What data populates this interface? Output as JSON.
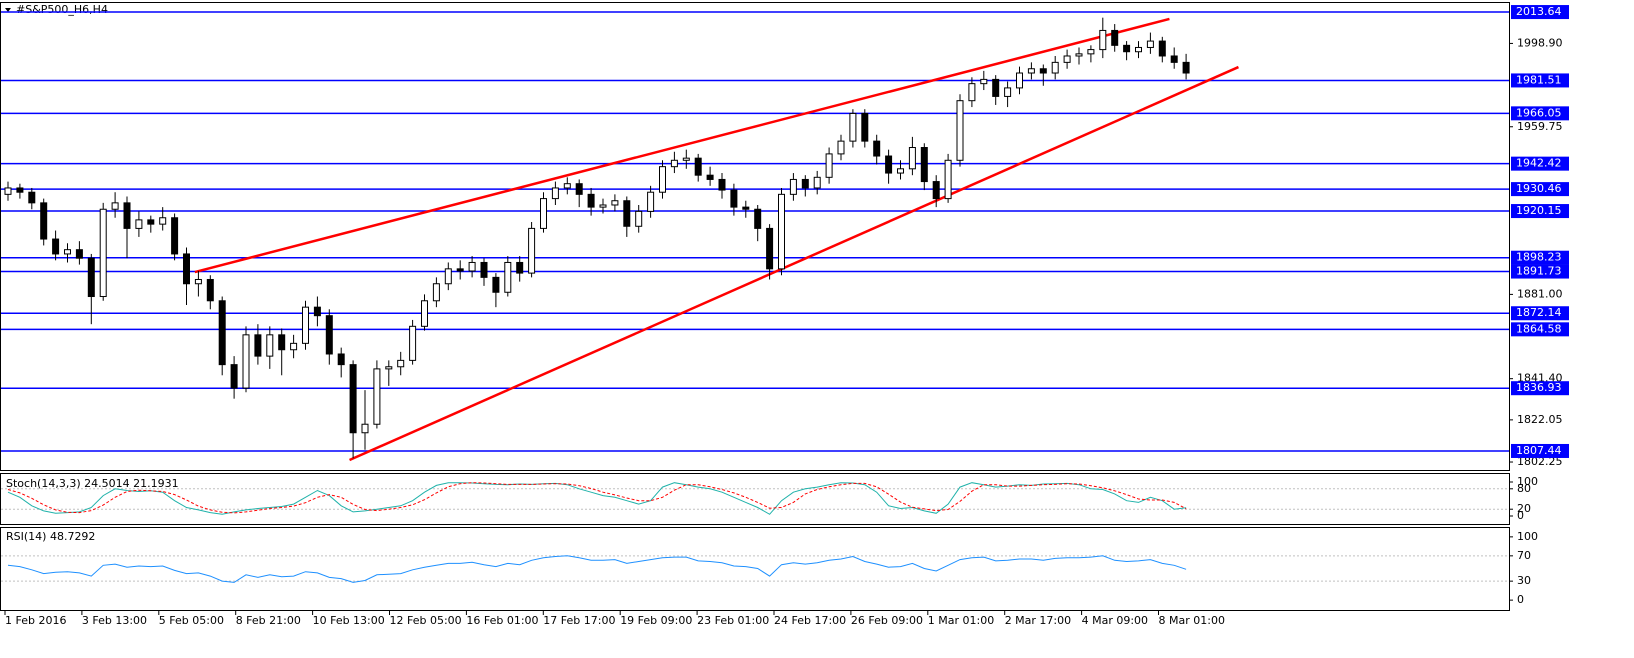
{
  "chart_data": [
    {
      "type": "candlestick",
      "title": "#S&P500_H6,H4",
      "ohlc": [
        [
          1928,
          1934,
          1925,
          1931
        ],
        [
          1931,
          1933,
          1926,
          1929
        ],
        [
          1929,
          1931,
          1921,
          1924
        ],
        [
          1924,
          1926,
          1904,
          1907
        ],
        [
          1907,
          1911,
          1897,
          1900
        ],
        [
          1900,
          1905,
          1896,
          1902
        ],
        [
          1902,
          1906,
          1895,
          1898
        ],
        [
          1898,
          1900,
          1867,
          1880
        ],
        [
          1880,
          1924,
          1878,
          1921
        ],
        [
          1921,
          1929,
          1917,
          1924
        ],
        [
          1924,
          1927,
          1898,
          1912
        ],
        [
          1912,
          1920,
          1908,
          1916
        ],
        [
          1916,
          1918,
          1910,
          1914
        ],
        [
          1914,
          1922,
          1911,
          1917
        ],
        [
          1917,
          1919,
          1897,
          1900
        ],
        [
          1900,
          1903,
          1876,
          1886
        ],
        [
          1886,
          1892,
          1880,
          1888
        ],
        [
          1888,
          1890,
          1874,
          1878
        ],
        [
          1878,
          1880,
          1843,
          1848
        ],
        [
          1848,
          1852,
          1832,
          1837
        ],
        [
          1837,
          1866,
          1835,
          1862
        ],
        [
          1862,
          1867,
          1848,
          1852
        ],
        [
          1852,
          1866,
          1846,
          1862
        ],
        [
          1862,
          1865,
          1843,
          1855
        ],
        [
          1855,
          1862,
          1851,
          1858
        ],
        [
          1858,
          1878,
          1855,
          1875
        ],
        [
          1875,
          1880,
          1866,
          1871
        ],
        [
          1871,
          1874,
          1848,
          1853
        ],
        [
          1853,
          1856,
          1842,
          1848
        ],
        [
          1848,
          1850,
          1804,
          1816
        ],
        [
          1816,
          1836,
          1808,
          1820
        ],
        [
          1820,
          1850,
          1818,
          1846
        ],
        [
          1846,
          1850,
          1838,
          1847
        ],
        [
          1847,
          1854,
          1843,
          1850
        ],
        [
          1850,
          1869,
          1848,
          1866
        ],
        [
          1866,
          1881,
          1864,
          1878
        ],
        [
          1878,
          1889,
          1875,
          1886
        ],
        [
          1886,
          1896,
          1883,
          1893
        ],
        [
          1893,
          1897,
          1888,
          1892
        ],
        [
          1892,
          1899,
          1889,
          1896
        ],
        [
          1896,
          1898,
          1885,
          1889
        ],
        [
          1889,
          1891,
          1875,
          1882
        ],
        [
          1882,
          1899,
          1880,
          1896
        ],
        [
          1896,
          1899,
          1887,
          1891
        ],
        [
          1891,
          1915,
          1889,
          1912
        ],
        [
          1912,
          1929,
          1910,
          1926
        ],
        [
          1926,
          1934,
          1923,
          1931
        ],
        [
          1931,
          1936,
          1928,
          1933
        ],
        [
          1933,
          1935,
          1922,
          1928
        ],
        [
          1928,
          1931,
          1918,
          1922
        ],
        [
          1922,
          1926,
          1919,
          1923
        ],
        [
          1923,
          1928,
          1920,
          1925
        ],
        [
          1925,
          1927,
          1908,
          1913
        ],
        [
          1913,
          1923,
          1910,
          1920
        ],
        [
          1920,
          1932,
          1917,
          1929
        ],
        [
          1929,
          1944,
          1926,
          1941
        ],
        [
          1941,
          1948,
          1938,
          1944
        ],
        [
          1944,
          1949,
          1940,
          1945
        ],
        [
          1945,
          1947,
          1934,
          1937
        ],
        [
          1937,
          1941,
          1932,
          1935
        ],
        [
          1935,
          1938,
          1926,
          1930
        ],
        [
          1930,
          1933,
          1918,
          1922
        ],
        [
          1922,
          1925,
          1917,
          1921
        ],
        [
          1921,
          1923,
          1906,
          1912
        ],
        [
          1912,
          1914,
          1888,
          1893
        ],
        [
          1893,
          1931,
          1890,
          1928
        ],
        [
          1928,
          1938,
          1925,
          1935
        ],
        [
          1935,
          1937,
          1927,
          1931
        ],
        [
          1931,
          1939,
          1928,
          1936
        ],
        [
          1936,
          1950,
          1933,
          1947
        ],
        [
          1947,
          1956,
          1944,
          1953
        ],
        [
          1953,
          1968,
          1950,
          1966
        ],
        [
          1966,
          1968,
          1950,
          1953
        ],
        [
          1953,
          1956,
          1942,
          1946
        ],
        [
          1946,
          1949,
          1933,
          1938
        ],
        [
          1938,
          1944,
          1935,
          1940
        ],
        [
          1940,
          1955,
          1937,
          1950
        ],
        [
          1950,
          1952,
          1930,
          1934
        ],
        [
          1934,
          1937,
          1922,
          1926
        ],
        [
          1926,
          1947,
          1924,
          1944
        ],
        [
          1944,
          1975,
          1941,
          1972
        ],
        [
          1972,
          1983,
          1969,
          1980
        ],
        [
          1980,
          1986,
          1977,
          1982
        ],
        [
          1982,
          1984,
          1970,
          1974
        ],
        [
          1974,
          1981,
          1969,
          1978
        ],
        [
          1978,
          1988,
          1975,
          1985
        ],
        [
          1985,
          1990,
          1982,
          1987
        ],
        [
          1987,
          1989,
          1979,
          1985
        ],
        [
          1985,
          1993,
          1982,
          1990
        ],
        [
          1990,
          1996,
          1987,
          1993
        ],
        [
          1993,
          1997,
          1989,
          1994
        ],
        [
          1994,
          1998,
          1990,
          1996
        ],
        [
          1996,
          2011,
          1992,
          2005
        ],
        [
          2005,
          2008,
          1995,
          1998
        ],
        [
          1998,
          2000,
          1991,
          1995
        ],
        [
          1995,
          2000,
          1992,
          1997
        ],
        [
          1997,
          2004,
          1994,
          2000
        ],
        [
          2000,
          2002,
          1990,
          1993
        ],
        [
          1993,
          1997,
          1987,
          1990
        ],
        [
          1990,
          1994,
          1982,
          1985
        ]
      ],
      "up_color": "#ffffff",
      "down_color": "#000000",
      "ylim": [
        1798.5,
        2019.3
      ],
      "yticks": [
        {
          "value": 1998.9,
          "label": "1998.90"
        },
        1959.75,
        {
          "value": 1881.0,
          "label": "1881.00"
        },
        {
          "value": 1841.4,
          "label": "1841.40"
        },
        1822.05,
        1802.25
      ],
      "levels": [
        2013.64,
        1981.51,
        1966.05,
        1942.42,
        1930.46,
        1920.15,
        1898.23,
        1891.73,
        1872.14,
        1864.58,
        1836.93,
        1807.44
      ],
      "level_color": "#0000ff",
      "trendlines": [
        {
          "color": "#ff0000",
          "x": [
            15.7,
            97.6
          ],
          "y": [
            1891.5,
            2010.4
          ]
        },
        {
          "color": "#ff0000",
          "x": [
            28.7,
            103.4
          ],
          "y": [
            1803.2,
            1987.8
          ]
        }
      ],
      "xtick_labels": [
        "1 Feb 2016",
        "3 Feb 13:00",
        "5 Feb 05:00",
        "8 Feb 21:00",
        "10 Feb 13:00",
        "12 Feb 05:00",
        "16 Feb 01:00",
        "17 Feb 17:00",
        "19 Feb 09:00",
        "23 Feb 01:00",
        "24 Feb 17:00",
        "26 Feb 09:00",
        "1 Mar 01:00",
        "2 Mar 17:00",
        "4 Mar 09:00",
        "8 Mar 01:00"
      ]
    },
    {
      "type": "line",
      "title": "Stoch(14,3,3) 24.5014 21.1931",
      "series": [
        {
          "color": "#20b2aa",
          "dash": false,
          "values": [
            70,
            55,
            30,
            15,
            8,
            10,
            12,
            25,
            60,
            80,
            75,
            72,
            74,
            70,
            45,
            25,
            18,
            10,
            5,
            12,
            18,
            22,
            25,
            28,
            35,
            55,
            75,
            60,
            30,
            12,
            15,
            20,
            25,
            30,
            45,
            70,
            90,
            98,
            98,
            97,
            95,
            93,
            92,
            94,
            93,
            95,
            96,
            92,
            80,
            70,
            60,
            55,
            45,
            35,
            45,
            85,
            98,
            92,
            85,
            80,
            70,
            55,
            40,
            25,
            5,
            45,
            70,
            80,
            85,
            92,
            98,
            97,
            92,
            70,
            30,
            22,
            25,
            15,
            8,
            35,
            85,
            98,
            92,
            85,
            88,
            92,
            90,
            94,
            95,
            96,
            92,
            80,
            78,
            65,
            45,
            40,
            55,
            45,
            20,
            24.5
          ]
        },
        {
          "color": "#ff0000",
          "dash": true,
          "values": [
            78,
            68,
            52,
            33,
            18,
            11,
            10,
            16,
            32,
            55,
            72,
            76,
            74,
            72,
            63,
            47,
            29,
            18,
            11,
            9,
            12,
            17,
            22,
            25,
            29,
            39,
            55,
            63,
            55,
            34,
            19,
            16,
            20,
            25,
            33,
            48,
            68,
            86,
            95,
            98,
            97,
            95,
            93,
            93,
            93,
            94,
            95,
            94,
            89,
            81,
            70,
            62,
            53,
            45,
            45,
            55,
            76,
            92,
            92,
            86,
            78,
            68,
            55,
            40,
            23,
            25,
            40,
            65,
            78,
            86,
            92,
            96,
            96,
            86,
            64,
            41,
            26,
            21,
            16,
            19,
            43,
            73,
            92,
            92,
            88,
            88,
            90,
            92,
            93,
            95,
            94,
            89,
            83,
            74,
            63,
            50,
            47,
            47,
            40,
            21.2
          ]
        }
      ],
      "ylim": [
        -23.5,
        123.5
      ],
      "yticks": [
        100,
        80,
        20,
        0
      ],
      "levels": [
        80,
        20
      ]
    },
    {
      "type": "line",
      "title": "RSI(14) 48.7292",
      "series": [
        {
          "color": "#1e90ff",
          "dash": false,
          "values": [
            55,
            53,
            48,
            42,
            44,
            45,
            43,
            38,
            55,
            57,
            52,
            54,
            53,
            54,
            47,
            42,
            43,
            38,
            30,
            28,
            40,
            36,
            40,
            37,
            38,
            45,
            43,
            36,
            34,
            28,
            31,
            40,
            41,
            42,
            48,
            52,
            55,
            58,
            58,
            60,
            56,
            53,
            58,
            56,
            63,
            67,
            69,
            70,
            67,
            63,
            63,
            64,
            58,
            61,
            64,
            67,
            68,
            68,
            62,
            61,
            59,
            54,
            53,
            50,
            38,
            56,
            59,
            57,
            59,
            63,
            65,
            69,
            61,
            57,
            52,
            53,
            58,
            50,
            46,
            55,
            64,
            67,
            68,
            62,
            63,
            65,
            65,
            63,
            66,
            67,
            67,
            68,
            70,
            63,
            61,
            62,
            64,
            58,
            55,
            48.7
          ]
        }
      ],
      "ylim": [
        -15.6,
        114
      ],
      "yticks": [
        100,
        70,
        30,
        0
      ],
      "levels": [
        70,
        30
      ]
    }
  ]
}
